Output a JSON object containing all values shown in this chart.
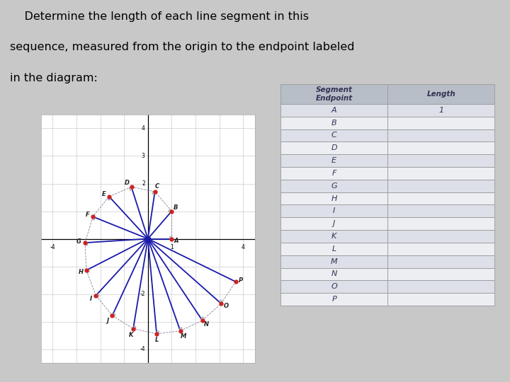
{
  "title_line1": "    Determine the length of each line segment in this",
  "title_line2": "sequence, measured from the origin to the endpoint labeled",
  "title_line3": "in the diagram:",
  "title_fontsize": 11.5,
  "background_color": "#c8c8c8",
  "plot_bg": "#ffffff",
  "diagram_xlim": [
    -4.5,
    4.5
  ],
  "diagram_ylim": [
    -4.5,
    4.5
  ],
  "segment_labels": [
    "A",
    "B",
    "C",
    "D",
    "E",
    "F",
    "G",
    "H",
    "I",
    "J",
    "K",
    "L",
    "M",
    "N",
    "O",
    "P"
  ],
  "line_color": "#1a1aaa",
  "point_color": "#cc2222",
  "table_header_bg": "#b8bec8",
  "table_odd_bg": "#dde0e8",
  "table_even_bg": "#eceef2",
  "table_edge_color": "#999999",
  "table_header_text": "#333355",
  "table_data_text": "#333355"
}
